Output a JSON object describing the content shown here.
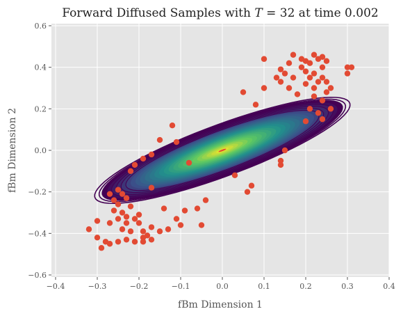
{
  "chart_data": {
    "type": "scatter",
    "title": "Forward Diffused Samples with T = 32 at time 0.002",
    "title_parts": {
      "prefix": "Forward Diffused Samples with ",
      "var": "T",
      "suffix": " = 32 at time 0.002"
    },
    "xlabel": "fBm Dimension 1",
    "ylabel": "fBm Dimension 2",
    "xlim": [
      -0.41,
      0.4
    ],
    "ylim": [
      -0.61,
      0.61
    ],
    "xticks": [
      "−0.4",
      "−0.3",
      "−0.2",
      "−0.1",
      "0.0",
      "0.1",
      "0.2",
      "0.3",
      "0.4"
    ],
    "xtick_values": [
      -0.4,
      -0.3,
      -0.2,
      -0.1,
      0.0,
      0.1,
      0.2,
      0.3,
      0.4
    ],
    "yticks": [
      "−0.6",
      "−0.4",
      "−0.2",
      "0.0",
      "0.2",
      "0.4",
      "0.6"
    ],
    "ytick_values": [
      -0.6,
      -0.4,
      -0.2,
      0.0,
      0.2,
      0.4,
      0.6
    ],
    "grid": true,
    "background": "#e5e5e5",
    "point_color": "#e24a33",
    "contour": {
      "center": [
        0.0,
        0.0
      ],
      "angle_deg": 39,
      "outer_semi_major": 0.385,
      "outer_semi_minor": 0.105,
      "levels": 26,
      "colormap": [
        "#440154",
        "#3b528b",
        "#21918c",
        "#5ec962",
        "#fde725"
      ]
    },
    "points": [
      [
        0.17,
        0.46
      ],
      [
        0.22,
        0.46
      ],
      [
        0.24,
        0.45
      ],
      [
        0.1,
        0.44
      ],
      [
        0.19,
        0.44
      ],
      [
        0.23,
        0.44
      ],
      [
        0.25,
        0.43
      ],
      [
        0.2,
        0.43
      ],
      [
        0.16,
        0.42
      ],
      [
        0.21,
        0.42
      ],
      [
        0.3,
        0.4
      ],
      [
        0.31,
        0.4
      ],
      [
        0.24,
        0.4
      ],
      [
        0.19,
        0.4
      ],
      [
        0.14,
        0.39
      ],
      [
        0.2,
        0.38
      ],
      [
        0.15,
        0.37
      ],
      [
        0.3,
        0.37
      ],
      [
        0.22,
        0.37
      ],
      [
        0.13,
        0.35
      ],
      [
        0.17,
        0.35
      ],
      [
        0.21,
        0.35
      ],
      [
        0.24,
        0.35
      ],
      [
        0.14,
        0.33
      ],
      [
        0.23,
        0.33
      ],
      [
        0.25,
        0.33
      ],
      [
        0.2,
        0.32
      ],
      [
        0.26,
        0.3
      ],
      [
        0.1,
        0.3
      ],
      [
        0.16,
        0.3
      ],
      [
        0.22,
        0.3
      ],
      [
        0.25,
        0.28
      ],
      [
        0.18,
        0.27
      ],
      [
        0.22,
        0.26
      ],
      [
        0.24,
        0.24
      ],
      [
        0.26,
        0.2
      ],
      [
        0.21,
        0.2
      ],
      [
        0.23,
        0.18
      ],
      [
        0.24,
        0.15
      ],
      [
        0.2,
        0.14
      ],
      [
        0.08,
        0.22
      ],
      [
        0.05,
        0.28
      ],
      [
        -0.12,
        0.12
      ],
      [
        -0.15,
        0.05
      ],
      [
        -0.11,
        0.04
      ],
      [
        -0.19,
        -0.04
      ],
      [
        -0.17,
        -0.02
      ],
      [
        -0.21,
        -0.07
      ],
      [
        -0.08,
        -0.06
      ],
      [
        -0.22,
        -0.1
      ],
      [
        -0.25,
        -0.19
      ],
      [
        -0.24,
        -0.21
      ],
      [
        -0.27,
        -0.21
      ],
      [
        -0.26,
        -0.24
      ],
      [
        -0.23,
        -0.23
      ],
      [
        -0.25,
        -0.26
      ],
      [
        -0.26,
        -0.29
      ],
      [
        -0.22,
        -0.27
      ],
      [
        -0.24,
        -0.3
      ],
      [
        -0.25,
        -0.33
      ],
      [
        -0.23,
        -0.32
      ],
      [
        -0.21,
        -0.33
      ],
      [
        -0.2,
        -0.31
      ],
      [
        -0.23,
        -0.35
      ],
      [
        -0.2,
        -0.35
      ],
      [
        -0.24,
        -0.38
      ],
      [
        -0.22,
        -0.39
      ],
      [
        -0.19,
        -0.39
      ],
      [
        -0.17,
        -0.37
      ],
      [
        -0.3,
        -0.34
      ],
      [
        -0.27,
        -0.35
      ],
      [
        -0.32,
        -0.38
      ],
      [
        -0.3,
        -0.42
      ],
      [
        -0.28,
        -0.44
      ],
      [
        -0.29,
        -0.47
      ],
      [
        -0.27,
        -0.45
      ],
      [
        -0.25,
        -0.44
      ],
      [
        -0.23,
        -0.43
      ],
      [
        -0.21,
        -0.44
      ],
      [
        -0.19,
        -0.44
      ],
      [
        -0.19,
        -0.42
      ],
      [
        -0.18,
        -0.41
      ],
      [
        -0.15,
        -0.39
      ],
      [
        -0.17,
        -0.43
      ],
      [
        -0.13,
        -0.38
      ],
      [
        -0.11,
        -0.33
      ],
      [
        -0.09,
        -0.29
      ],
      [
        -0.06,
        -0.28
      ],
      [
        -0.04,
        -0.24
      ],
      [
        0.06,
        -0.2
      ],
      [
        0.07,
        -0.17
      ],
      [
        0.14,
        -0.05
      ],
      [
        0.15,
        0.0
      ],
      [
        0.14,
        -0.07
      ],
      [
        0.03,
        -0.12
      ],
      [
        -0.17,
        -0.18
      ],
      [
        -0.14,
        -0.28
      ],
      [
        -0.1,
        -0.36
      ],
      [
        -0.05,
        -0.36
      ]
    ]
  }
}
